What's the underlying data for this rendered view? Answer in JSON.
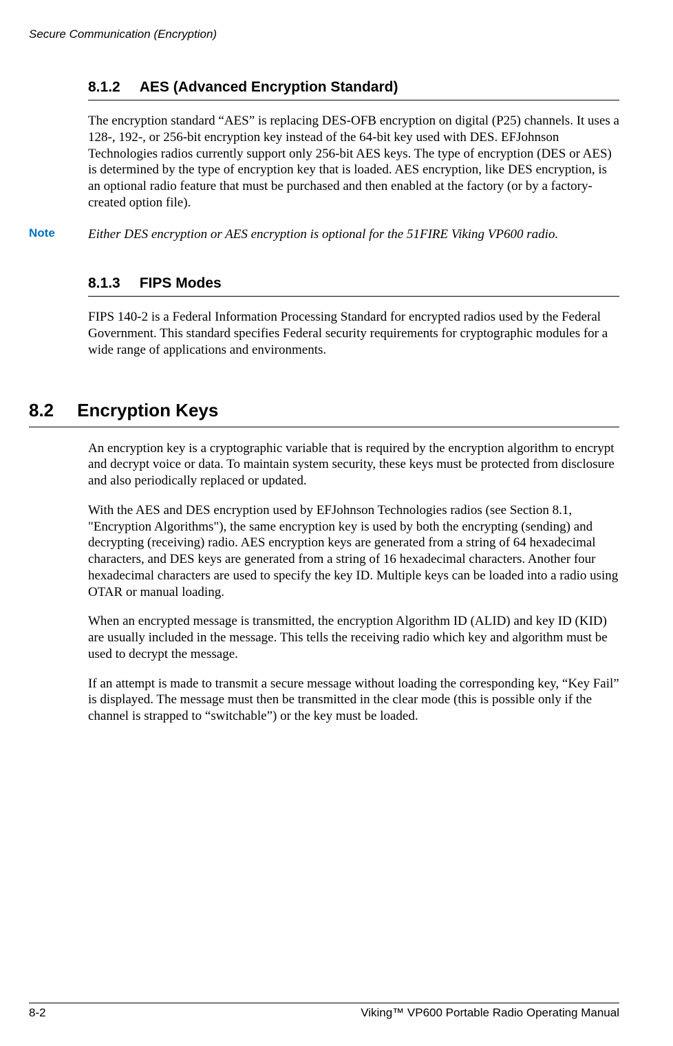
{
  "header": {
    "chapter_title": "Secure Communication (Encryption)"
  },
  "section_812": {
    "number": "8.1.2",
    "title": "AES (Advanced Encryption Standard)",
    "body": "The encryption standard “AES” is replacing DES-OFB encryption on digital (P25) channels. It uses a 128-, 192-, or 256-bit encryption key instead of the 64-bit key used with DES. EFJohnson Technologies radios currently support only 256-bit AES keys. The type of encryption (DES or AES) is determined by the type of encryption key that is loaded. AES encryption, like DES encryption, is an optional radio feature that must be purchased and then enabled at the factory (or by a factory-created option file)."
  },
  "note": {
    "label": "Note",
    "text": "Either DES encryption or AES encryption is optional for the 51FIRE Viking VP600 radio."
  },
  "section_813": {
    "number": "8.1.3",
    "title": "FIPS Modes",
    "body": "FIPS 140-2 is a Federal Information Processing Standard for encrypted radios used by the Federal Government. This standard specifies Federal security requirements for cryptographic modules for a wide range of applications and environments."
  },
  "section_82": {
    "number": "8.2",
    "title": "Encryption Keys",
    "p1": "An encryption key is a cryptographic variable that is required by the encryption algorithm to encrypt and decrypt voice or data. To maintain system security, these keys must be protected from disclosure and also periodically replaced or updated.",
    "p2": "With the AES and DES encryption used by EFJohnson Technologies radios (see Section 8.1, \"Encryption Algorithms\"), the same encryption key is used by both the encrypting (sending) and decrypting (receiving) radio. AES encryption keys are generated from a string of 64 hexadecimal characters, and DES keys are generated from a string of 16 hexadecimal characters. Another four hexadecimal characters are used to specify the key ID. Multiple keys can be loaded into a radio using OTAR or manual loading.",
    "p3": "When an encrypted message is transmitted, the encryption Algorithm ID (ALID) and key ID (KID) are usually included in the message. This tells the receiving radio which key and algorithm must be used to decrypt the message.",
    "p4": "If an attempt is made to transmit a secure message without loading the corresponding key, “Key Fail” is displayed. The message must then be transmitted in the clear mode (this is possible only if the channel is strapped to “switchable”) or the key must be loaded."
  },
  "footer": {
    "page": "8-2",
    "manual": "Viking™ VP600 Portable Radio Operating Manual"
  }
}
